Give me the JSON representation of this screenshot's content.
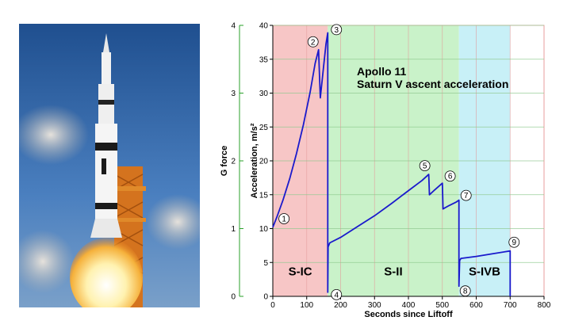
{
  "chart_data": {
    "type": "line",
    "title": "Apollo 11",
    "subtitle": "Saturn V ascent acceleration",
    "xlabel": "Seconds since Liftoff",
    "ylabel": "Acceleration, m/s²",
    "y2label": "G force",
    "xlim": [
      0,
      800
    ],
    "ylim": [
      0,
      40
    ],
    "y2lim": [
      0,
      4
    ],
    "x_ticks": [
      0,
      100,
      200,
      300,
      400,
      500,
      600,
      700,
      800
    ],
    "y_ticks": [
      0,
      5,
      10,
      15,
      20,
      25,
      30,
      35,
      40
    ],
    "y2_ticks": [
      0,
      1,
      2,
      3,
      4
    ],
    "grid": true,
    "line_color": "#1a1acc",
    "stages": [
      {
        "name": "S-IC",
        "x_start": 0,
        "x_end": 162,
        "color": "#f7c6c6"
      },
      {
        "name": "S-II",
        "x_start": 162,
        "x_end": 549,
        "color": "#c9f2c9"
      },
      {
        "name": "S-IVB",
        "x_start": 549,
        "x_end": 700,
        "color": "#c8f0f7"
      }
    ],
    "series": [
      {
        "x": [
          0,
          12,
          30,
          50,
          70,
          90,
          110,
          125,
          135,
          140,
          150,
          157,
          162,
          162,
          163,
          168,
          200,
          250,
          300,
          350,
          400,
          440,
          460,
          462,
          475,
          500,
          502,
          520,
          540,
          549,
          549,
          551,
          555,
          600,
          650,
          700,
          700
        ],
        "y": [
          10.2,
          11.7,
          14.2,
          17.4,
          21.1,
          25.3,
          30.1,
          34.4,
          36.4,
          29.3,
          34.0,
          37.3,
          38.9,
          0.6,
          7.3,
          7.9,
          8.7,
          10.3,
          11.9,
          13.7,
          15.6,
          17.1,
          18.0,
          15.0,
          15.6,
          16.7,
          12.9,
          13.4,
          13.9,
          14.2,
          1.5,
          5.3,
          5.6,
          5.9,
          6.3,
          6.7,
          0
        ]
      }
    ],
    "annotations": [
      {
        "label": "1",
        "x": 12,
        "y": 11.7
      },
      {
        "label": "2",
        "x": 135,
        "y": 36.4
      },
      {
        "label": "3",
        "x": 162,
        "y": 38.9
      },
      {
        "label": "4",
        "x": 162,
        "y": 0.6
      },
      {
        "label": "5",
        "x": 460,
        "y": 18.0
      },
      {
        "label": "6",
        "x": 502,
        "y": 16.7
      },
      {
        "label": "7",
        "x": 549,
        "y": 14.2
      },
      {
        "label": "8",
        "x": 549,
        "y": 1.5
      },
      {
        "label": "9",
        "x": 700,
        "y": 6.7
      }
    ]
  },
  "photo": {
    "icon": "saturn-v-launch-photo",
    "sky_color": "#3a6ba8",
    "flame_color": "#fff4c0"
  }
}
